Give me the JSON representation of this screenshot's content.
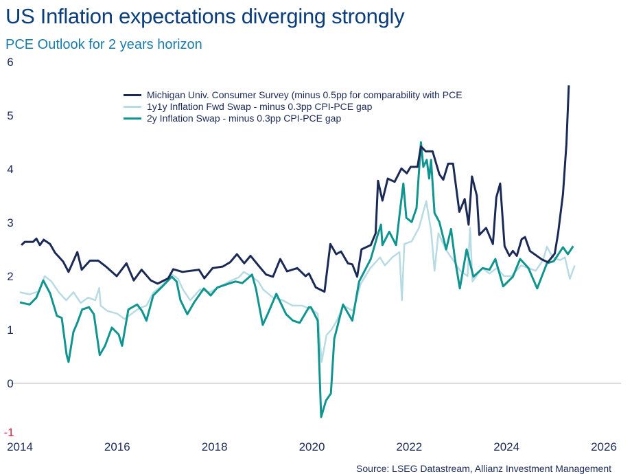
{
  "title": "US Inflation expectations diverging strongly",
  "subtitle": "PCE Outlook for 2 years horizon",
  "source": "Source: LSEG Datastream, Allianz Investment Management",
  "chart_data": {
    "type": "line",
    "title": "US Inflation expectations diverging strongly",
    "subtitle": "PCE Outlook for 2 years horizon",
    "xlabel": "",
    "ylabel": "",
    "xlim": [
      2014,
      2026
    ],
    "ylim": [
      -1,
      6
    ],
    "x_ticks": [
      "2014",
      "2016",
      "2018",
      "2020",
      "2022",
      "2024",
      "2026"
    ],
    "y_ticks": [
      "6",
      "5",
      "4",
      "3",
      "2",
      "1",
      "0",
      "-1"
    ],
    "grid": "zero line only",
    "legend_position": "top-center",
    "series": [
      {
        "name": "Michigan Univ. Consumer Survey (minus 0.5pp for comparability with PCE",
        "color": "#1b2a55",
        "points": [
          [
            2014.03,
            2.58
          ],
          [
            2014.1,
            2.64
          ],
          [
            2014.27,
            2.64
          ],
          [
            2014.34,
            2.7
          ],
          [
            2014.41,
            2.58
          ],
          [
            2014.49,
            2.68
          ],
          [
            2014.62,
            2.6
          ],
          [
            2014.72,
            2.44
          ],
          [
            2014.89,
            2.27
          ],
          [
            2015.0,
            2.08
          ],
          [
            2015.18,
            2.45
          ],
          [
            2015.27,
            2.12
          ],
          [
            2015.44,
            2.29
          ],
          [
            2015.61,
            2.29
          ],
          [
            2015.78,
            2.17
          ],
          [
            2015.99,
            2.0
          ],
          [
            2016.19,
            2.24
          ],
          [
            2016.34,
            1.92
          ],
          [
            2016.5,
            2.12
          ],
          [
            2016.69,
            1.92
          ],
          [
            2016.83,
            1.86
          ],
          [
            2017.05,
            1.96
          ],
          [
            2017.15,
            2.13
          ],
          [
            2017.34,
            2.08
          ],
          [
            2017.68,
            2.12
          ],
          [
            2017.79,
            1.96
          ],
          [
            2017.96,
            2.15
          ],
          [
            2018.17,
            2.18
          ],
          [
            2018.32,
            2.26
          ],
          [
            2018.46,
            2.41
          ],
          [
            2018.61,
            2.24
          ],
          [
            2018.74,
            2.38
          ],
          [
            2018.92,
            2.18
          ],
          [
            2019.06,
            2.03
          ],
          [
            2019.2,
            1.99
          ],
          [
            2019.35,
            2.32
          ],
          [
            2019.49,
            2.09
          ],
          [
            2019.7,
            2.15
          ],
          [
            2019.87,
            2.0
          ],
          [
            2019.94,
            2.05
          ],
          [
            2020.08,
            1.79
          ],
          [
            2020.26,
            1.71
          ],
          [
            2020.38,
            2.6
          ],
          [
            2020.5,
            2.41
          ],
          [
            2020.6,
            2.46
          ],
          [
            2020.74,
            2.24
          ],
          [
            2020.83,
            2.22
          ],
          [
            2020.93,
            1.99
          ],
          [
            2021.02,
            2.5
          ],
          [
            2021.21,
            2.58
          ],
          [
            2021.31,
            2.8
          ],
          [
            2021.36,
            3.78
          ],
          [
            2021.45,
            3.41
          ],
          [
            2021.56,
            3.82
          ],
          [
            2021.7,
            3.76
          ],
          [
            2021.84,
            4.01
          ],
          [
            2021.95,
            3.92
          ],
          [
            2022.03,
            4.04
          ],
          [
            2022.17,
            4.04
          ],
          [
            2022.24,
            4.42
          ],
          [
            2022.34,
            4.33
          ],
          [
            2022.48,
            4.33
          ],
          [
            2022.62,
            3.9
          ],
          [
            2022.7,
            3.8
          ],
          [
            2022.8,
            4.1
          ],
          [
            2022.9,
            4.1
          ],
          [
            2023.03,
            3.2
          ],
          [
            2023.14,
            3.44
          ],
          [
            2023.22,
            2.96
          ],
          [
            2023.29,
            3.86
          ],
          [
            2023.39,
            3.5
          ],
          [
            2023.44,
            2.77
          ],
          [
            2023.58,
            2.9
          ],
          [
            2023.72,
            2.6
          ],
          [
            2023.79,
            3.47
          ],
          [
            2023.87,
            3.73
          ],
          [
            2023.96,
            2.56
          ],
          [
            2024.06,
            2.38
          ],
          [
            2024.13,
            2.47
          ],
          [
            2024.21,
            2.38
          ],
          [
            2024.31,
            2.69
          ],
          [
            2024.38,
            2.73
          ],
          [
            2024.48,
            2.47
          ],
          [
            2024.73,
            2.31
          ],
          [
            2024.85,
            2.26
          ],
          [
            2024.99,
            2.42
          ],
          [
            2025.06,
            2.8
          ],
          [
            2025.16,
            3.53
          ],
          [
            2025.23,
            4.46
          ],
          [
            2025.28,
            5.56
          ]
        ]
      },
      {
        "name": "1y1y Inflation Fwd Swap - minus 0.3pp CPI-PCE gap",
        "color": "#b8dbe3",
        "points": [
          [
            2014.0,
            1.7
          ],
          [
            2014.2,
            1.66
          ],
          [
            2014.4,
            1.72
          ],
          [
            2014.51,
            2.0
          ],
          [
            2014.65,
            1.9
          ],
          [
            2014.8,
            1.7
          ],
          [
            2014.95,
            1.55
          ],
          [
            2015.1,
            1.7
          ],
          [
            2015.25,
            1.5
          ],
          [
            2015.4,
            1.6
          ],
          [
            2015.55,
            1.55
          ],
          [
            2015.63,
            1.78
          ],
          [
            2015.66,
            1.45
          ],
          [
            2015.8,
            1.35
          ],
          [
            2016.0,
            1.3
          ],
          [
            2016.15,
            1.2
          ],
          [
            2016.3,
            1.3
          ],
          [
            2016.45,
            1.4
          ],
          [
            2016.6,
            1.45
          ],
          [
            2016.75,
            1.7
          ],
          [
            2016.95,
            1.85
          ],
          [
            2017.1,
            2.05
          ],
          [
            2017.25,
            1.95
          ],
          [
            2017.35,
            1.75
          ],
          [
            2017.5,
            1.55
          ],
          [
            2017.7,
            1.75
          ],
          [
            2017.9,
            1.7
          ],
          [
            2018.1,
            1.8
          ],
          [
            2018.3,
            1.9
          ],
          [
            2018.5,
            1.98
          ],
          [
            2018.6,
            2.08
          ],
          [
            2018.75,
            2.0
          ],
          [
            2018.9,
            1.9
          ],
          [
            2019.0,
            1.75
          ],
          [
            2019.2,
            1.6
          ],
          [
            2019.4,
            1.55
          ],
          [
            2019.6,
            1.45
          ],
          [
            2019.8,
            1.45
          ],
          [
            2020.0,
            1.38
          ],
          [
            2020.12,
            1.3
          ],
          [
            2020.2,
            0.4
          ],
          [
            2020.3,
            0.9
          ],
          [
            2020.4,
            1.0
          ],
          [
            2020.5,
            1.15
          ],
          [
            2020.65,
            1.45
          ],
          [
            2020.85,
            1.35
          ],
          [
            2021.0,
            1.85
          ],
          [
            2021.2,
            2.15
          ],
          [
            2021.4,
            2.35
          ],
          [
            2021.5,
            2.2
          ],
          [
            2021.65,
            2.35
          ],
          [
            2021.8,
            2.45
          ],
          [
            2021.85,
            1.55
          ],
          [
            2021.9,
            2.6
          ],
          [
            2022.05,
            2.65
          ],
          [
            2022.2,
            2.9
          ],
          [
            2022.35,
            3.4
          ],
          [
            2022.45,
            2.85
          ],
          [
            2022.52,
            2.1
          ],
          [
            2022.6,
            2.8
          ],
          [
            2022.75,
            2.5
          ],
          [
            2022.9,
            2.3
          ],
          [
            2023.05,
            2.1
          ],
          [
            2023.2,
            2.0
          ],
          [
            2023.25,
            2.9
          ],
          [
            2023.3,
            1.9
          ],
          [
            2023.5,
            2.15
          ],
          [
            2023.65,
            2.05
          ],
          [
            2023.8,
            2.15
          ],
          [
            2023.95,
            2.0
          ],
          [
            2024.1,
            2.0
          ],
          [
            2024.3,
            2.2
          ],
          [
            2024.45,
            2.15
          ],
          [
            2024.6,
            2.1
          ],
          [
            2024.75,
            2.3
          ],
          [
            2024.83,
            2.55
          ],
          [
            2024.95,
            2.35
          ],
          [
            2025.1,
            2.3
          ],
          [
            2025.2,
            2.35
          ],
          [
            2025.3,
            1.95
          ],
          [
            2025.4,
            2.2
          ]
        ]
      },
      {
        "name": "2y Inflation Swap - minus 0.3pp CPI-PCE gap",
        "color": "#0f9490",
        "points": [
          [
            2014.0,
            1.51
          ],
          [
            2014.2,
            1.47
          ],
          [
            2014.34,
            1.6
          ],
          [
            2014.48,
            1.92
          ],
          [
            2014.62,
            1.68
          ],
          [
            2014.76,
            1.26
          ],
          [
            2014.86,
            1.22
          ],
          [
            2014.96,
            0.53
          ],
          [
            2015.0,
            0.4
          ],
          [
            2015.1,
            0.96
          ],
          [
            2015.18,
            1.13
          ],
          [
            2015.28,
            1.38
          ],
          [
            2015.42,
            1.42
          ],
          [
            2015.52,
            1.29
          ],
          [
            2015.64,
            0.53
          ],
          [
            2015.75,
            0.7
          ],
          [
            2015.89,
            1.04
          ],
          [
            2016.03,
            0.91
          ],
          [
            2016.1,
            0.7
          ],
          [
            2016.23,
            1.38
          ],
          [
            2016.41,
            1.47
          ],
          [
            2016.51,
            1.35
          ],
          [
            2016.6,
            1.17
          ],
          [
            2016.74,
            1.64
          ],
          [
            2016.93,
            1.81
          ],
          [
            2017.12,
            1.99
          ],
          [
            2017.22,
            1.9
          ],
          [
            2017.3,
            1.55
          ],
          [
            2017.44,
            1.29
          ],
          [
            2017.58,
            1.51
          ],
          [
            2017.78,
            1.77
          ],
          [
            2017.92,
            1.64
          ],
          [
            2018.06,
            1.79
          ],
          [
            2018.29,
            1.86
          ],
          [
            2018.43,
            1.9
          ],
          [
            2018.57,
            1.87
          ],
          [
            2018.77,
            2.03
          ],
          [
            2018.85,
            1.77
          ],
          [
            2018.99,
            1.09
          ],
          [
            2019.09,
            1.29
          ],
          [
            2019.27,
            1.67
          ],
          [
            2019.47,
            1.29
          ],
          [
            2019.61,
            1.17
          ],
          [
            2019.75,
            1.13
          ],
          [
            2019.94,
            1.42
          ],
          [
            2019.98,
            1.42
          ],
          [
            2020.12,
            1.17
          ],
          [
            2020.19,
            -0.63
          ],
          [
            2020.29,
            -0.32
          ],
          [
            2020.39,
            -0.19
          ],
          [
            2020.46,
            0.83
          ],
          [
            2020.64,
            1.47
          ],
          [
            2020.83,
            1.17
          ],
          [
            2020.97,
            1.9
          ],
          [
            2021.21,
            2.32
          ],
          [
            2021.35,
            2.76
          ],
          [
            2021.42,
            2.96
          ],
          [
            2021.45,
            2.58
          ],
          [
            2021.59,
            2.83
          ],
          [
            2021.73,
            2.58
          ],
          [
            2021.81,
            3.22
          ],
          [
            2021.88,
            3.73
          ],
          [
            2021.94,
            3.09
          ],
          [
            2022.05,
            3.01
          ],
          [
            2022.15,
            3.27
          ],
          [
            2022.24,
            4.5
          ],
          [
            2022.29,
            4.04
          ],
          [
            2022.36,
            4.17
          ],
          [
            2022.41,
            3.82
          ],
          [
            2022.45,
            4.17
          ],
          [
            2022.52,
            3.18
          ],
          [
            2022.62,
            3.01
          ],
          [
            2022.76,
            2.5
          ],
          [
            2022.86,
            2.88
          ],
          [
            2022.94,
            2.32
          ],
          [
            2023.04,
            1.77
          ],
          [
            2023.18,
            2.5
          ],
          [
            2023.32,
            1.99
          ],
          [
            2023.51,
            2.15
          ],
          [
            2023.65,
            2.12
          ],
          [
            2023.77,
            2.32
          ],
          [
            2023.93,
            1.81
          ],
          [
            2024.13,
            1.99
          ],
          [
            2024.28,
            2.32
          ],
          [
            2024.45,
            2.15
          ],
          [
            2024.63,
            1.77
          ],
          [
            2024.83,
            2.24
          ],
          [
            2024.97,
            2.28
          ],
          [
            2025.16,
            2.54
          ],
          [
            2025.26,
            2.41
          ],
          [
            2025.37,
            2.56
          ]
        ]
      }
    ]
  }
}
